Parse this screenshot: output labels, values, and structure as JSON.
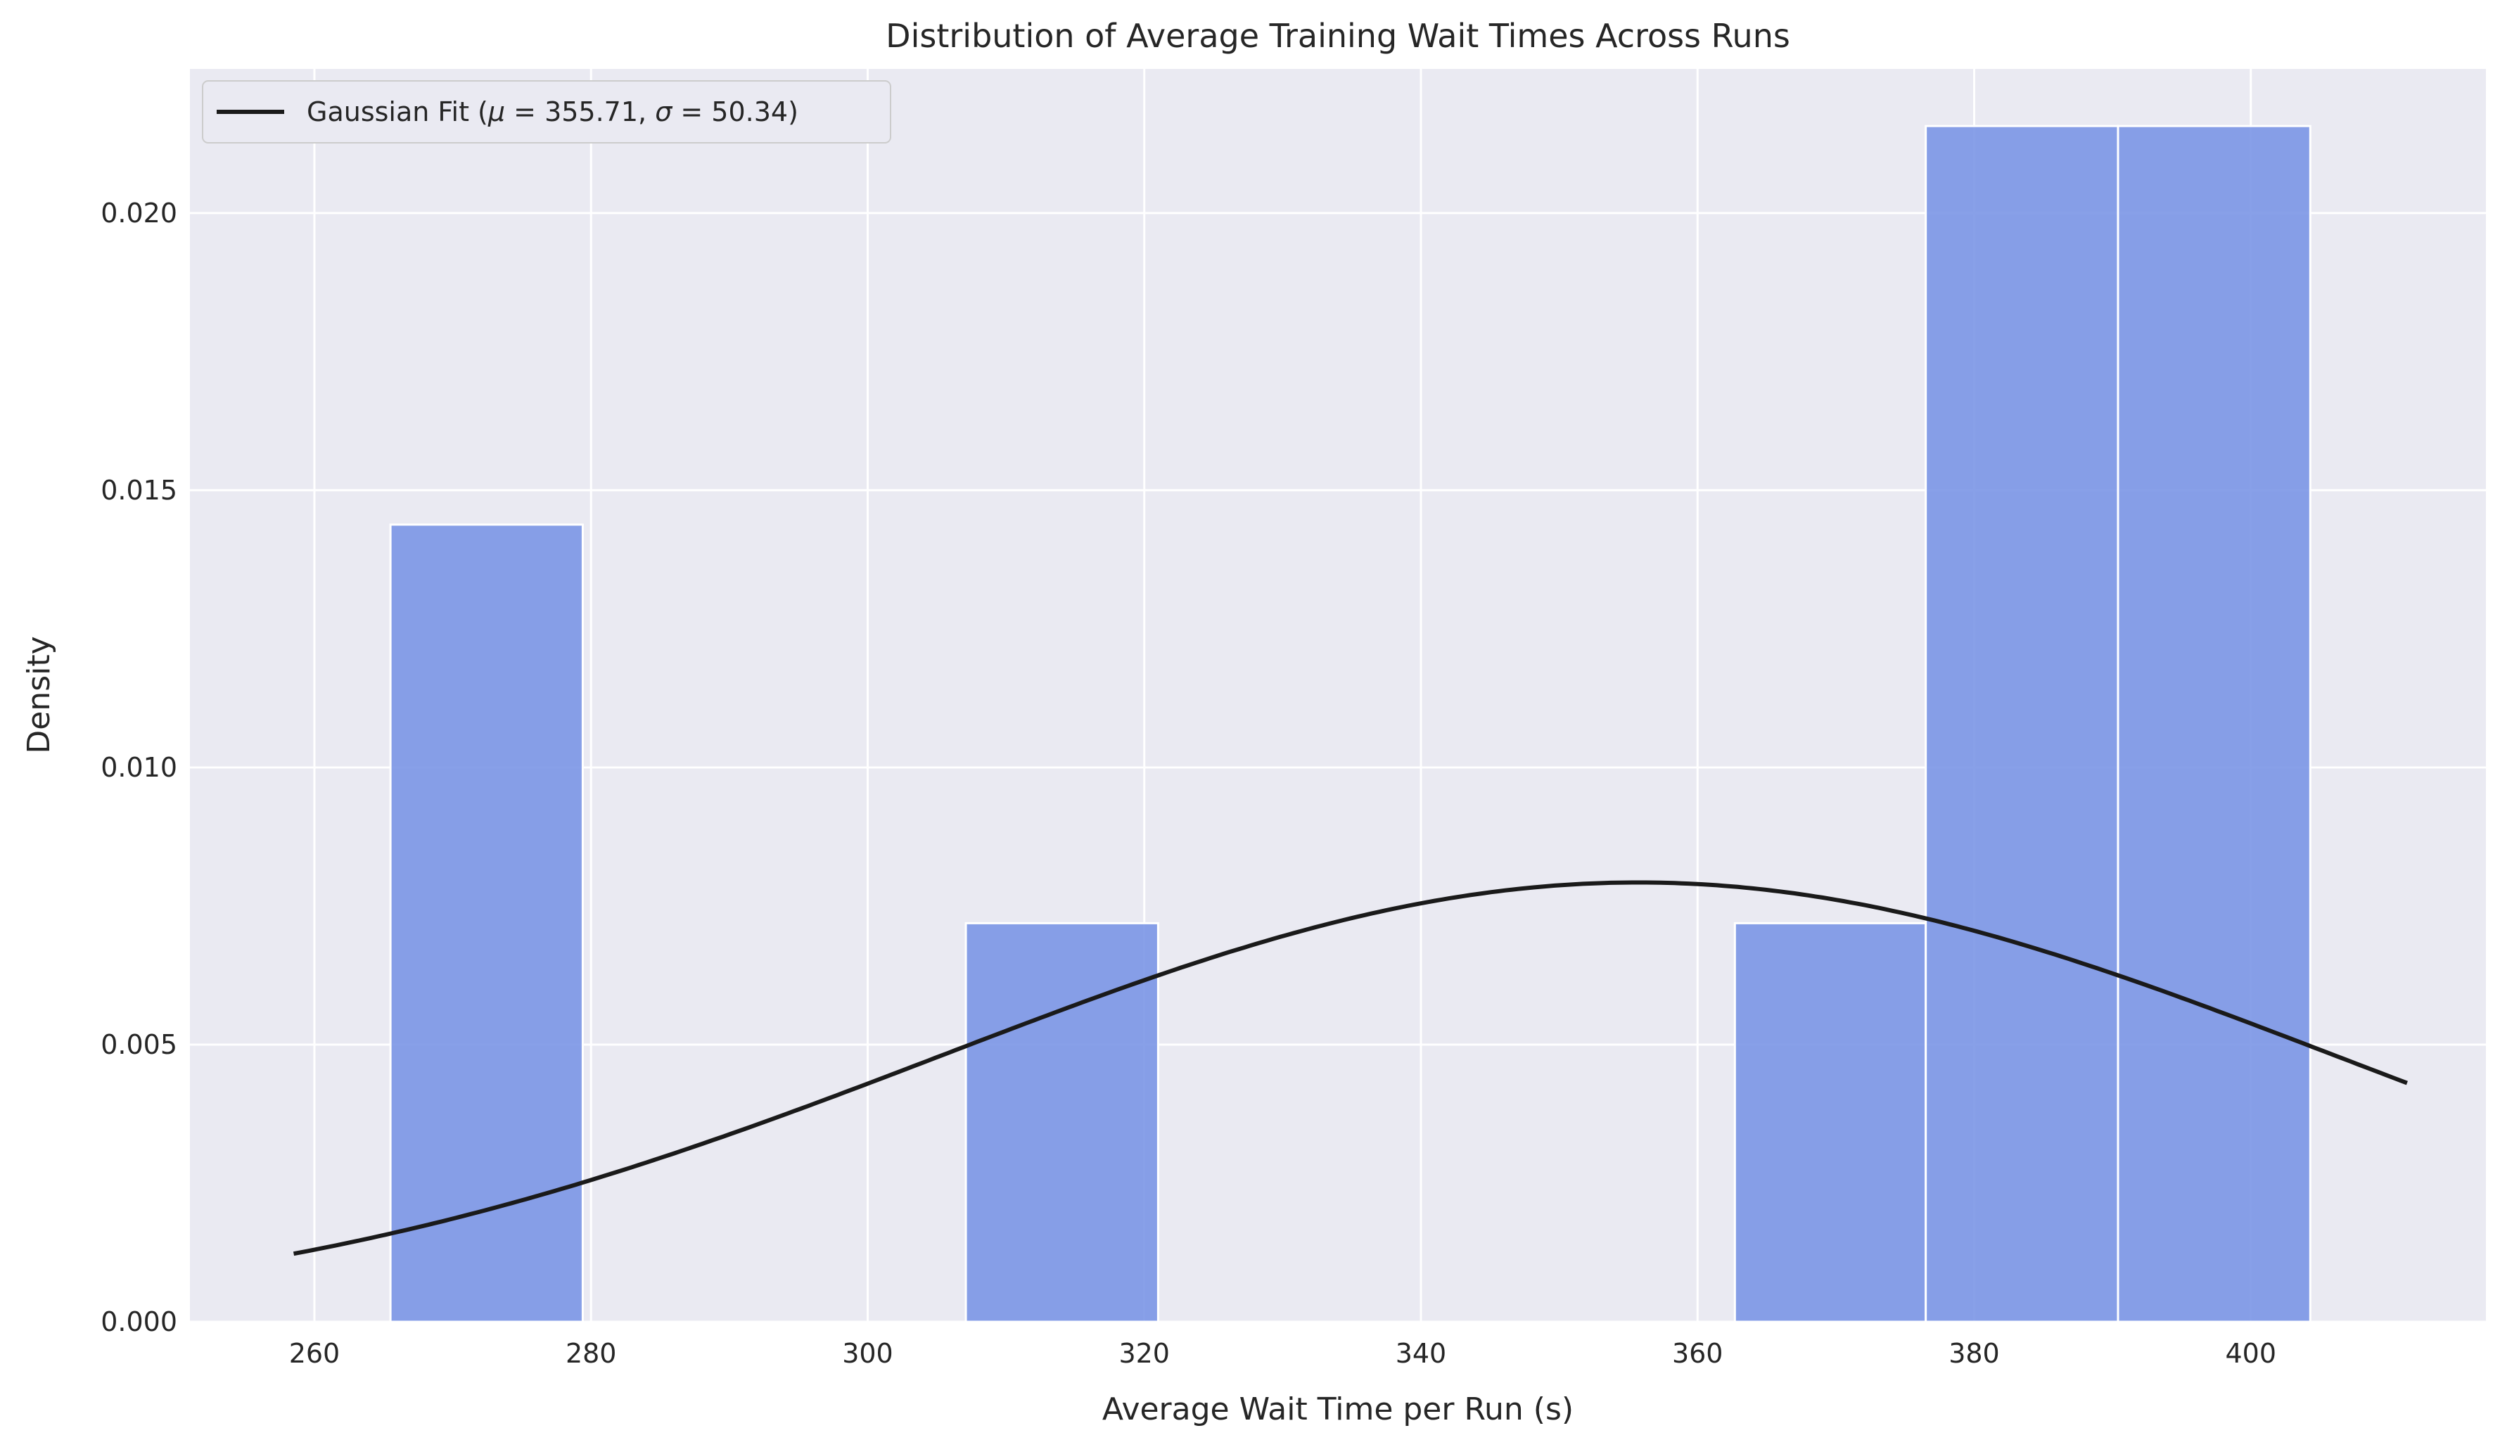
{
  "chart_data": {
    "type": "histogram",
    "title": "Distribution of Average Training Wait Times Across Runs",
    "xlabel": "Average Wait Time per Run (s)",
    "ylabel": "Density",
    "xlim": [
      251,
      417
    ],
    "ylim": [
      0,
      0.0226
    ],
    "xticks": [
      260,
      280,
      300,
      320,
      340,
      360,
      380,
      400
    ],
    "yticks": [
      0.0,
      0.005,
      0.01,
      0.015,
      0.02
    ],
    "ytick_labels": [
      "0.000",
      "0.005",
      "0.010",
      "0.015",
      "0.020"
    ],
    "grid": true,
    "legend_position": "top-left",
    "bars": [
      {
        "x0": 265.5,
        "x1": 279.4,
        "density": 0.01438
      },
      {
        "x0": 279.4,
        "x1": 293.3,
        "density": 0.0
      },
      {
        "x0": 293.3,
        "x1": 307.1,
        "density": 0.0
      },
      {
        "x0": 307.1,
        "x1": 321.0,
        "density": 0.00719
      },
      {
        "x0": 321.0,
        "x1": 334.9,
        "density": 0.0
      },
      {
        "x0": 334.9,
        "x1": 348.8,
        "density": 0.0
      },
      {
        "x0": 348.8,
        "x1": 362.7,
        "density": 0.0
      },
      {
        "x0": 362.7,
        "x1": 376.5,
        "density": 0.00719
      },
      {
        "x0": 376.5,
        "x1": 390.4,
        "density": 0.02157
      },
      {
        "x0": 390.4,
        "x1": 404.3,
        "density": 0.02157
      }
    ],
    "fit": {
      "legend_prefix": "Gaussian Fit (",
      "mu_symbol": "μ",
      "sigma_symbol": "σ",
      "mu": 355.71,
      "sigma": 50.34,
      "mu_text": "355.71",
      "sigma_text": "50.34",
      "x_range": [
        258.5,
        411.3
      ]
    },
    "colors": {
      "bar": "#7b96e6",
      "bar_edge": "#ffffff",
      "plot_bg": "#eaeaf2",
      "grid": "#ffffff",
      "fit_line": "#1a1a1a"
    }
  }
}
